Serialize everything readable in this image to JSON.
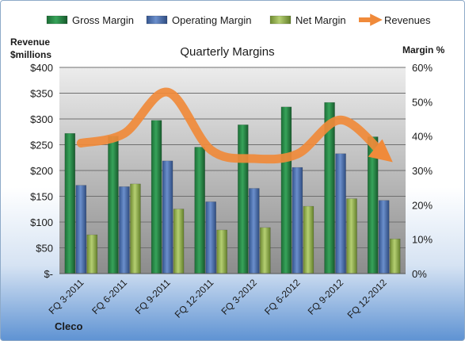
{
  "chart_data": {
    "type": "bar",
    "title": "Quarterly Margins",
    "company": "Cleco",
    "left_axis_label": [
      "Revenue",
      "$millions"
    ],
    "right_axis_label": "Margin %",
    "categories": [
      "FQ 3-2011",
      "FQ 6-2011",
      "FQ 9-2011",
      "FQ 12-2011",
      "FQ 3-2012",
      "FQ 6-2012",
      "FQ 9-2012",
      "FQ 12-2012"
    ],
    "left_ticks": [
      "$-",
      "$50",
      "$100",
      "$150",
      "$200",
      "$250",
      "$300",
      "$350",
      "$400"
    ],
    "right_ticks": [
      "0%",
      "10%",
      "20%",
      "30%",
      "40%",
      "50%",
      "60%"
    ],
    "ylim_left": [
      0,
      400
    ],
    "ylim_right": [
      0,
      60
    ],
    "grid": true,
    "legend_position": "top",
    "series": [
      {
        "name": "Gross Margin",
        "axis": "right",
        "kind": "bar",
        "color": "#1f7a3e",
        "values": [
          40.8,
          40.0,
          44.6,
          36.8,
          43.3,
          48.5,
          49.8,
          39.8
        ]
      },
      {
        "name": "Operating Margin",
        "axis": "right",
        "kind": "bar",
        "color": "#4a6fb0",
        "values": [
          25.7,
          25.3,
          32.8,
          20.9,
          24.8,
          30.9,
          34.9,
          21.3
        ]
      },
      {
        "name": "Net Margin",
        "axis": "right",
        "kind": "bar",
        "color": "#8eab4a",
        "values": [
          11.3,
          26.1,
          18.8,
          12.7,
          13.4,
          19.6,
          21.8,
          10.1
        ]
      },
      {
        "name": "Revenues",
        "axis": "left",
        "kind": "line",
        "color": "#f08a3a",
        "values": [
          253,
          272,
          352,
          240,
          223,
          232,
          298,
          230
        ]
      }
    ]
  }
}
